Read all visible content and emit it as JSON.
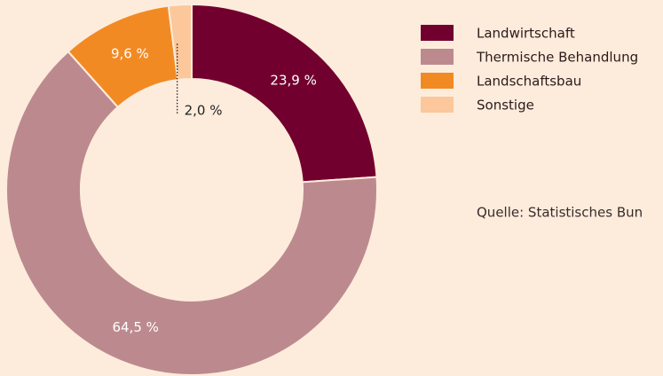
{
  "chart_data": {
    "type": "donut",
    "categories": [
      "Landwirtschaft",
      "Thermische Behandlung",
      "Landschaftsbau",
      "Sonstige"
    ],
    "values": [
      23.9,
      64.5,
      9.6,
      2.0
    ],
    "value_labels": [
      "23,9 %",
      "64,5 %",
      "9,6 %",
      "2,0 %"
    ],
    "colors": [
      "#72002e",
      "#bc8a8e",
      "#f28a24",
      "#fcc79b"
    ],
    "source": "Quelle: Statistisches Bun"
  }
}
